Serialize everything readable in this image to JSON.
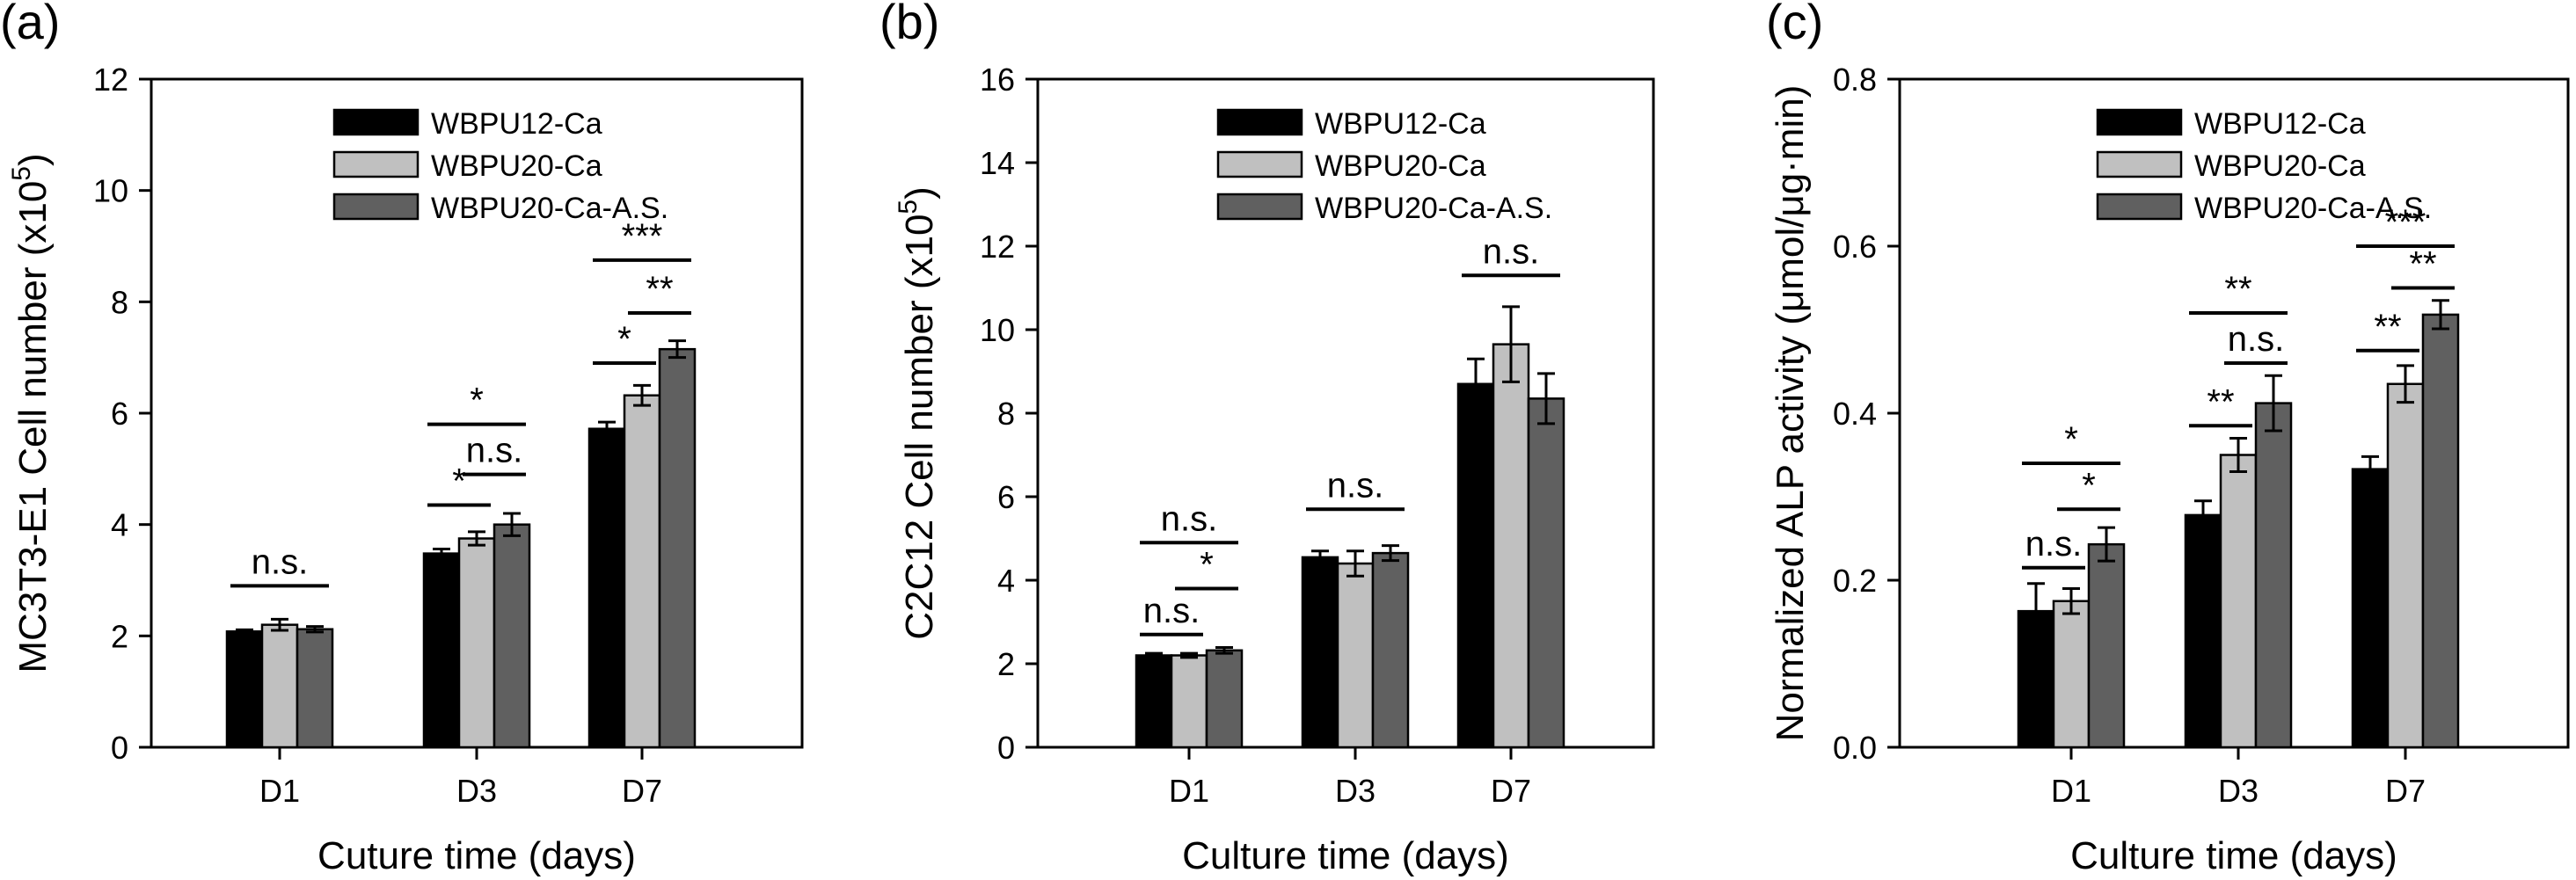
{
  "colors": {
    "WBPU12-Ca": "#000000",
    "WBPU20-Ca": "#c0c0c0",
    "WBPU20-Ca-A.S.": "#606060"
  },
  "chart_data": [
    {
      "type": "bar",
      "panel": "(a)",
      "xlabel": "Cuture time (days)",
      "ylabel": "MC3T3-E1 Cell number (x10^5)",
      "ylabel_main": "MC3T3-E1 Cell number (x10",
      "ylabel_exp": "5",
      "ylabel_close": ")",
      "ylim": [
        0,
        12
      ],
      "yticks": [
        0,
        2,
        4,
        6,
        8,
        10,
        12
      ],
      "ytick_labels": [
        "0",
        "2",
        "4",
        "6",
        "8",
        "10",
        "12"
      ],
      "categories": [
        "D1",
        "D3",
        "D7"
      ],
      "legend": "top-right",
      "series": [
        {
          "name": "WBPU12-Ca",
          "values": [
            2.08,
            3.48,
            5.72
          ],
          "errors": [
            0.03,
            0.08,
            0.12
          ]
        },
        {
          "name": "WBPU20-Ca",
          "values": [
            2.2,
            3.75,
            6.32
          ],
          "errors": [
            0.1,
            0.12,
            0.18
          ]
        },
        {
          "name": "WBPU20-Ca-A.S.",
          "values": [
            2.12,
            4.0,
            7.15
          ],
          "errors": [
            0.05,
            0.2,
            0.15
          ]
        }
      ],
      "significance": [
        {
          "cat": 0,
          "from": 0,
          "to": 2,
          "y": 2.9,
          "label": "n.s."
        },
        {
          "cat": 1,
          "from": 0,
          "to": 1,
          "y": 4.35,
          "label": "*"
        },
        {
          "cat": 1,
          "from": 1,
          "to": 2,
          "y": 4.9,
          "label": "n.s."
        },
        {
          "cat": 1,
          "from": 0,
          "to": 2,
          "y": 5.8,
          "label": "*"
        },
        {
          "cat": 2,
          "from": 0,
          "to": 1,
          "y": 6.9,
          "label": "*"
        },
        {
          "cat": 2,
          "from": 1,
          "to": 2,
          "y": 7.8,
          "label": "**"
        },
        {
          "cat": 2,
          "from": 0,
          "to": 2,
          "y": 8.75,
          "label": "***"
        }
      ]
    },
    {
      "type": "bar",
      "panel": "(b)",
      "xlabel": "Culture time (days)",
      "ylabel": "C2C12 Cell number (x10^5)",
      "ylabel_main": "C2C12 Cell number (x10",
      "ylabel_exp": "5",
      "ylabel_close": ")",
      "ylim": [
        0,
        16
      ],
      "yticks": [
        0,
        2,
        4,
        6,
        8,
        10,
        12,
        14,
        16
      ],
      "ytick_labels": [
        "0",
        "2",
        "4",
        "6",
        "8",
        "10",
        "12",
        "14",
        "16"
      ],
      "categories": [
        "D1",
        "D3",
        "D7"
      ],
      "legend": "top-right",
      "series": [
        {
          "name": "WBPU12-Ca",
          "values": [
            2.2,
            4.55,
            8.7
          ],
          "errors": [
            0.05,
            0.15,
            0.6
          ]
        },
        {
          "name": "WBPU20-Ca",
          "values": [
            2.2,
            4.4,
            9.65
          ],
          "errors": [
            0.05,
            0.3,
            0.9
          ]
        },
        {
          "name": "WBPU20-Ca-A.S.",
          "values": [
            2.32,
            4.65,
            8.35
          ],
          "errors": [
            0.07,
            0.18,
            0.6
          ]
        }
      ],
      "significance": [
        {
          "cat": 0,
          "from": 0,
          "to": 1,
          "y": 2.7,
          "label": "n.s."
        },
        {
          "cat": 0,
          "from": 1,
          "to": 2,
          "y": 3.8,
          "label": "*"
        },
        {
          "cat": 0,
          "from": 0,
          "to": 2,
          "y": 4.9,
          "label": "n.s."
        },
        {
          "cat": 1,
          "from": 0,
          "to": 2,
          "y": 5.7,
          "label": "n.s."
        },
        {
          "cat": 2,
          "from": 0,
          "to": 2,
          "y": 11.3,
          "label": "n.s."
        }
      ]
    },
    {
      "type": "bar",
      "panel": "(c)",
      "xlabel": "Culture time (days)",
      "ylabel": "Normalized ALP activity (μmol/μg·min)",
      "ylabel_main": "Normalized ALP activity (μmol/μg·min)",
      "ylabel_exp": "",
      "ylabel_close": "",
      "ylim": [
        0,
        0.8
      ],
      "yticks": [
        0,
        0.2,
        0.4,
        0.6,
        0.8
      ],
      "ytick_labels": [
        "0.0",
        "0.2",
        "0.4",
        "0.6",
        "0.8"
      ],
      "categories": [
        "D1",
        "D3",
        "D7"
      ],
      "legend": "top-right",
      "series": [
        {
          "name": "WBPU12-Ca",
          "values": [
            0.163,
            0.278,
            0.333
          ],
          "errors": [
            0.033,
            0.017,
            0.015
          ]
        },
        {
          "name": "WBPU20-Ca",
          "values": [
            0.175,
            0.35,
            0.435
          ],
          "errors": [
            0.015,
            0.02,
            0.022
          ]
        },
        {
          "name": "WBPU20-Ca-A.S.",
          "values": [
            0.243,
            0.412,
            0.518
          ],
          "errors": [
            0.02,
            0.033,
            0.017
          ]
        }
      ],
      "significance": [
        {
          "cat": 0,
          "from": 0,
          "to": 1,
          "y": 0.215,
          "label": "n.s."
        },
        {
          "cat": 0,
          "from": 1,
          "to": 2,
          "y": 0.285,
          "label": "*"
        },
        {
          "cat": 0,
          "from": 0,
          "to": 2,
          "y": 0.34,
          "label": "*"
        },
        {
          "cat": 1,
          "from": 0,
          "to": 1,
          "y": 0.385,
          "label": "**"
        },
        {
          "cat": 1,
          "from": 1,
          "to": 2,
          "y": 0.46,
          "label": "n.s."
        },
        {
          "cat": 1,
          "from": 0,
          "to": 2,
          "y": 0.52,
          "label": "**"
        },
        {
          "cat": 2,
          "from": 0,
          "to": 1,
          "y": 0.475,
          "label": "**"
        },
        {
          "cat": 2,
          "from": 1,
          "to": 2,
          "y": 0.55,
          "label": "**"
        },
        {
          "cat": 2,
          "from": 0,
          "to": 2,
          "y": 0.6,
          "label": "***"
        }
      ]
    }
  ]
}
